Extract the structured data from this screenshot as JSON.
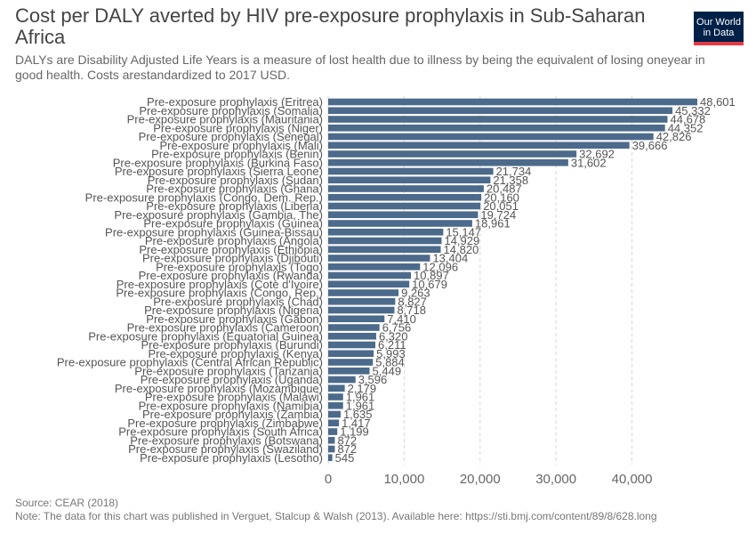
{
  "header": {
    "title": "Cost per DALY averted by HIV pre-exposure prophylaxis in Sub-Saharan Africa",
    "subtitle": "DALYs are Disability Adjusted Life Years is a measure of lost health due to illness by being the equivalent of losing oneyear in good health. Costs arestandardized to 2017 USD.",
    "logo_line1": "Our World",
    "logo_line2": "in Data"
  },
  "footer": {
    "source": "Source: CEAR (2018)",
    "note": "Note: The data for this chart was published in Verguet, Stalcup & Walsh (2013). Available here: https://sti.bmj.com/content/89/8/628.long"
  },
  "colors": {
    "bar": "#4c6a8b",
    "grid": "#d8d8d8",
    "text": "#555555"
  },
  "chart_data": {
    "type": "bar",
    "orientation": "horizontal",
    "title": "Cost per DALY averted by HIV pre-exposure prophylaxis in Sub-Saharan Africa",
    "xlim": [
      0,
      48601
    ],
    "xticks": [
      0,
      10000,
      20000,
      30000,
      40000
    ],
    "xtick_labels": [
      "0",
      "10,000",
      "20,000",
      "30,000",
      "40,000"
    ],
    "grid": true,
    "categories": [
      "Pre-exposure prophylaxis (Eritrea)",
      "Pre-exposure prophylaxis (Somalia)",
      "Pre-exposure prophylaxis (Mauritania)",
      "Pre-exposure prophylaxis (Niger)",
      "Pre-exposure prophylaxis (Senegal)",
      "Pre-exposure prophylaxis (Mali)",
      "Pre-exposure prophylaxis (Benin)",
      "Pre-exposure prophylaxis (Burkina Faso)",
      "Pre-exposure prophylaxis (Sierra Leone)",
      "Pre-exposure prophylaxis (Sudan)",
      "Pre-exposure prophylaxis (Ghana)",
      "Pre-exposure prophylaxis (Congo, Dem. Rep.)",
      "Pre-exposure prophylaxis (Liberia)",
      "Pre-exposure prophylaxis (Gambia, The)",
      "Pre-exposure prophylaxis (Guinea)",
      "Pre-exposure prophylaxis (Guinea-Bissau)",
      "Pre-exposure prophylaxis (Angola)",
      "Pre-exposure prophylaxis (Ethiopia)",
      "Pre-exposure prophylaxis (Djibouti)",
      "Pre-exposure prophylaxis (Togo)",
      "Pre-exposure prophylaxis (Rwanda)",
      "Pre-exposure prophylaxis (Cote d'Ivoire)",
      "Pre-exposure prophylaxis (Congo, Rep.)",
      "Pre-exposure prophylaxis (Chad)",
      "Pre-exposure prophylaxis (Nigeria)",
      "Pre-exposure prophylaxis (Gabon)",
      "Pre-exposure prophylaxis (Cameroon)",
      "Pre-exposure prophylaxis (Equatorial Guinea)",
      "Pre-exposure prophylaxis (Burundi)",
      "Pre-exposure prophylaxis (Kenya)",
      "Pre-exposure prophylaxis (Central African Republic)",
      "Pre-exposure prophylaxis (Tanzania)",
      "Pre-exposure prophylaxis (Uganda)",
      "Pre-exposure prophylaxis (Mozambique)",
      "Pre-exposure prophylaxis (Malawi)",
      "Pre-exposure prophylaxis (Namibia)",
      "Pre-exposure prophylaxis (Zambia)",
      "Pre-exposure prophylaxis (Zimbabwe)",
      "Pre-exposure prophylaxis (South Africa)",
      "Pre-exposure prophylaxis (Botswana)",
      "Pre-exposure prophylaxis (Swaziland)",
      "Pre-exposure prophylaxis (Lesotho)"
    ],
    "values": [
      48601,
      45332,
      44678,
      44352,
      42826,
      39666,
      32692,
      31602,
      21734,
      21358,
      20487,
      20160,
      20051,
      19724,
      18961,
      15147,
      14929,
      14820,
      13404,
      12096,
      10897,
      10679,
      9263,
      8827,
      8718,
      7410,
      6756,
      6320,
      6211,
      5993,
      5884,
      5449,
      3596,
      2179,
      1961,
      1961,
      1635,
      1417,
      1199,
      872,
      872,
      545
    ],
    "value_labels": [
      "48,601",
      "45,332",
      "44,678",
      "44,352",
      "42,826",
      "39,666",
      "32,692",
      "31,602",
      "21,734",
      "21,358",
      "20,487",
      "20,160",
      "20,051",
      "19,724",
      "18,961",
      "15,147",
      "14,929",
      "14,820",
      "13,404",
      "12,096",
      "10,897",
      "10,679",
      "9,263",
      "8,827",
      "8,718",
      "7,410",
      "6,756",
      "6,320",
      "6,211",
      "5,993",
      "5,884",
      "5,449",
      "3,596",
      "2,179",
      "1,961",
      "1,961",
      "1,635",
      "1,417",
      "1,199",
      "872",
      "872",
      "545"
    ]
  }
}
